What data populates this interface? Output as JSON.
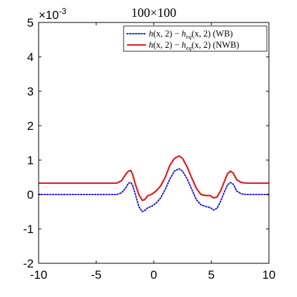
{
  "chart_data": {
    "type": "line",
    "title": "100×100",
    "xlabel": "",
    "ylabel": "",
    "exponent_base": "×10",
    "exponent_power": "-3",
    "xlim": [
      -10,
      10
    ],
    "ylim": [
      -2,
      5
    ],
    "xticks": [
      -10,
      -5,
      0,
      5,
      10
    ],
    "yticks": [
      -2,
      -1,
      0,
      1,
      2,
      3,
      4,
      5
    ],
    "grid": false,
    "legend_position": "top-right",
    "series": [
      {
        "name": "h(x,2) − h_eq(x,2) (WB)",
        "label_func": "h",
        "label_eq": "h",
        "label_sub": "eq",
        "label_args": "(x, 2)",
        "label_tag": "(WB)",
        "color": "#1f1fd6",
        "style": "dotted",
        "x": [
          -10,
          -3.2,
          -2.8,
          -2.4,
          -2.2,
          -2.0,
          -1.85,
          -1.6,
          -1.3,
          -1.0,
          -0.8,
          -0.5,
          -0.2,
          0.2,
          0.6,
          1.0,
          1.4,
          1.8,
          2.2,
          2.5,
          2.9,
          3.3,
          3.7,
          4.1,
          4.5,
          4.9,
          5.2,
          5.5,
          5.8,
          6.1,
          6.4,
          6.65,
          6.9,
          7.2,
          7.6,
          8.0,
          10
        ],
        "y": [
          0,
          0,
          0.05,
          0.2,
          0.33,
          0.35,
          0.28,
          0.0,
          -0.35,
          -0.5,
          -0.47,
          -0.38,
          -0.35,
          -0.25,
          -0.1,
          0.15,
          0.45,
          0.68,
          0.75,
          0.68,
          0.45,
          0.15,
          -0.15,
          -0.3,
          -0.35,
          -0.38,
          -0.45,
          -0.4,
          -0.2,
          0.05,
          0.28,
          0.35,
          0.3,
          0.1,
          0.02,
          0,
          0
        ]
      },
      {
        "name": "h(x,2) − h_eq(x,2) (NWB)",
        "label_func": "h",
        "label_eq": "h",
        "label_sub": "eq",
        "label_args": "(x, 2)",
        "label_tag": "(NWB)",
        "color": "#e31a1c",
        "style": "solid",
        "x": [
          -10,
          -3.2,
          -2.8,
          -2.4,
          -2.2,
          -2.0,
          -1.85,
          -1.6,
          -1.3,
          -1.0,
          -0.8,
          -0.5,
          -0.2,
          0.2,
          0.6,
          1.0,
          1.4,
          1.8,
          2.2,
          2.5,
          2.9,
          3.3,
          3.7,
          4.1,
          4.5,
          4.9,
          5.2,
          5.5,
          5.8,
          6.1,
          6.4,
          6.65,
          6.9,
          7.2,
          7.6,
          8.0,
          10
        ],
        "y": [
          0.33,
          0.33,
          0.4,
          0.6,
          0.68,
          0.7,
          0.6,
          0.3,
          0.0,
          -0.17,
          -0.15,
          -0.03,
          0.0,
          0.1,
          0.25,
          0.5,
          0.85,
          1.05,
          1.12,
          1.05,
          0.8,
          0.48,
          0.18,
          0.0,
          -0.03,
          -0.03,
          -0.1,
          -0.07,
          0.1,
          0.35,
          0.6,
          0.68,
          0.62,
          0.43,
          0.35,
          0.33,
          0.33
        ]
      }
    ]
  }
}
